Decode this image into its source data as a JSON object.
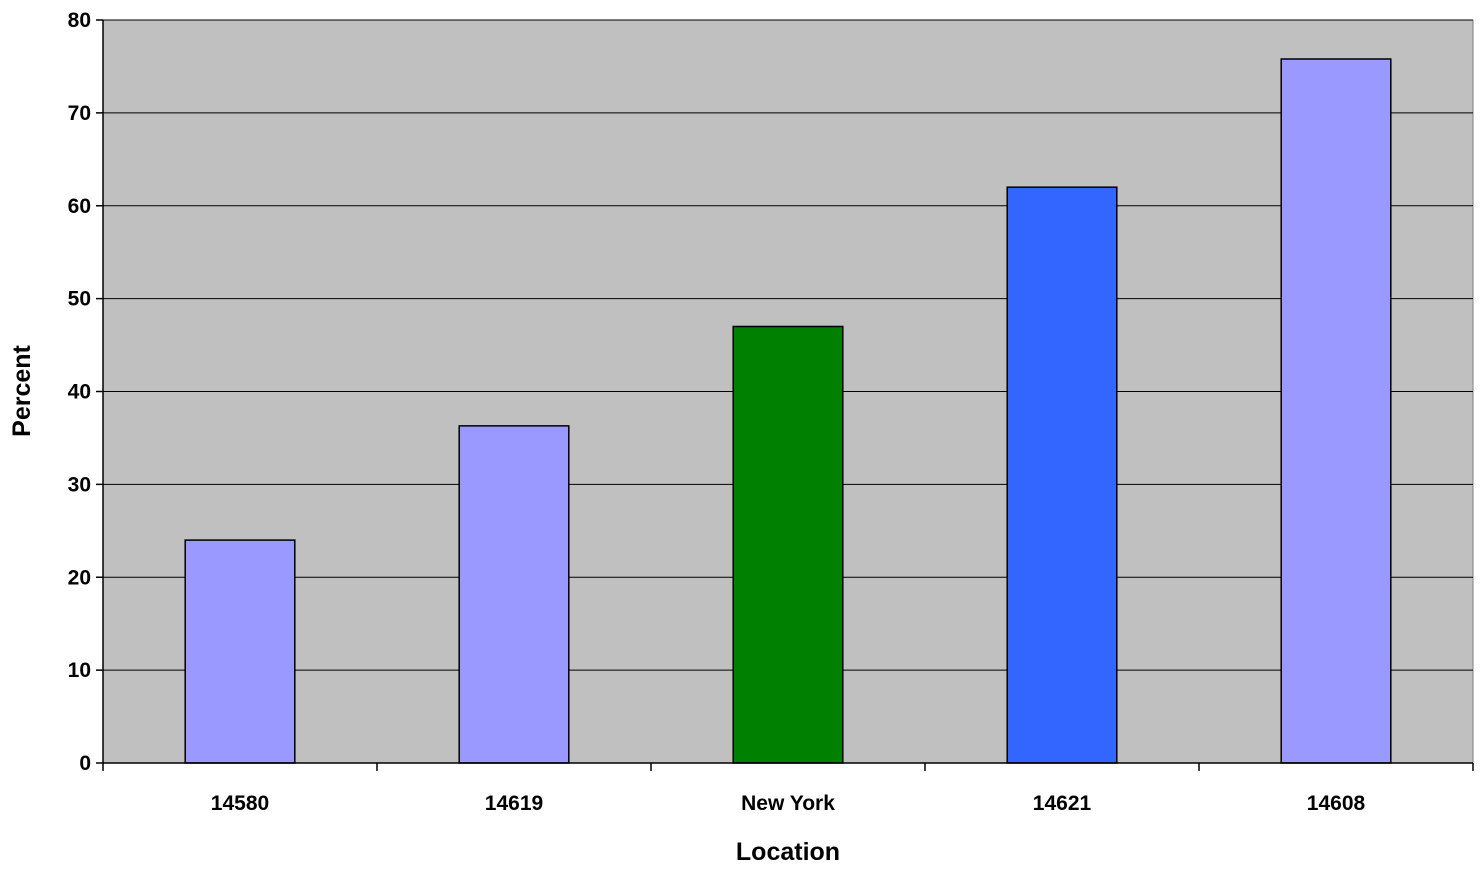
{
  "chart_data": {
    "type": "bar",
    "title": "",
    "xlabel": "Location",
    "ylabel": "Percent",
    "categories": [
      "14580",
      "14619",
      "New York",
      "14621",
      "14608"
    ],
    "values": [
      24,
      36.3,
      47,
      62,
      75.8
    ],
    "bar_colors": [
      "#9999ff",
      "#9999ff",
      "#008000",
      "#3366ff",
      "#9999ff"
    ],
    "ylim": [
      0,
      80
    ],
    "yticks": [
      0,
      10,
      20,
      30,
      40,
      50,
      60,
      70,
      80
    ],
    "grid": true,
    "legend": "none",
    "plot_background": "#c0c0c0"
  }
}
